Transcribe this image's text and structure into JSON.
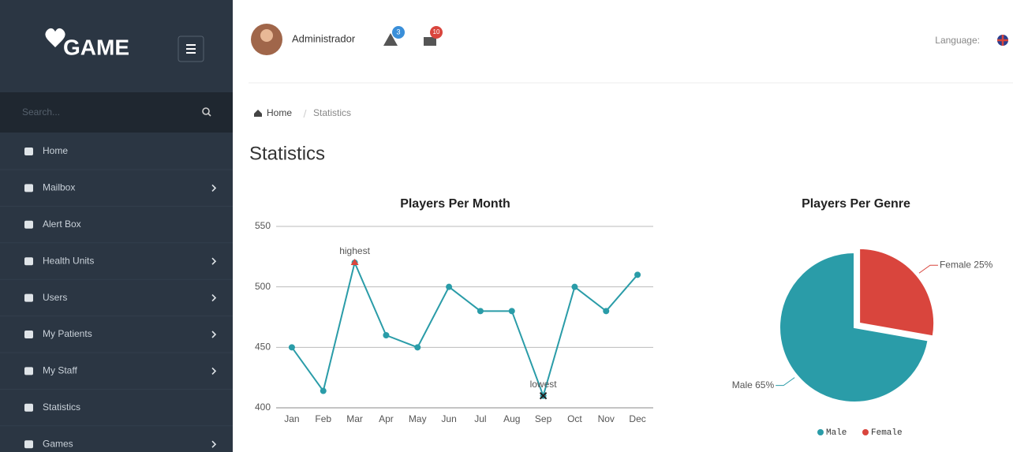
{
  "sidebar": {
    "logo": "GAME",
    "search_placeholder": "Search...",
    "menu": [
      {
        "label": "Home",
        "has_submenu": false
      },
      {
        "label": "Mailbox",
        "has_submenu": true
      },
      {
        "label": "Alert Box",
        "has_submenu": false
      },
      {
        "label": "Health Units",
        "has_submenu": true
      },
      {
        "label": "Users",
        "has_submenu": true
      },
      {
        "label": "My Patients",
        "has_submenu": true
      },
      {
        "label": "My Staff",
        "has_submenu": true
      },
      {
        "label": "Statistics",
        "has_submenu": false
      },
      {
        "label": "Games",
        "has_submenu": true
      }
    ]
  },
  "header": {
    "user": "Administrador",
    "alerts": 3,
    "messages": 10,
    "language_label": "Language:"
  },
  "breadcrumb": [
    "Home",
    "Statistics"
  ],
  "page_title": "Statistics",
  "chart_data": [
    {
      "type": "line",
      "title": "Players Per Month",
      "categories": [
        "Jan",
        "Feb",
        "Mar",
        "Apr",
        "May",
        "Jun",
        "Jul",
        "Aug",
        "Sep",
        "Oct",
        "Nov",
        "Dec"
      ],
      "values": [
        450,
        414,
        520,
        460,
        450,
        500,
        480,
        480,
        410,
        500,
        480,
        510
      ],
      "color": "#2a9ca8",
      "ylim": [
        400,
        550
      ],
      "yticks": [
        400,
        450,
        500,
        550
      ],
      "grid": true,
      "annotations": [
        {
          "text": "highest",
          "x": "Mar",
          "marker": "triangle",
          "color": "#d9453d"
        },
        {
          "text": "lowest",
          "x": "Sep",
          "marker": "cross",
          "color": "#222222"
        }
      ]
    },
    {
      "type": "pie",
      "title": "Players Per Genre",
      "categories": [
        "Male",
        "Female"
      ],
      "values": [
        65,
        25
      ],
      "value_labels": [
        "Male 65%",
        "Female 25%"
      ],
      "colors": [
        "#2a9ca8",
        "#d9453d"
      ],
      "exploded": [
        false,
        true
      ],
      "legend": "bottom"
    }
  ]
}
